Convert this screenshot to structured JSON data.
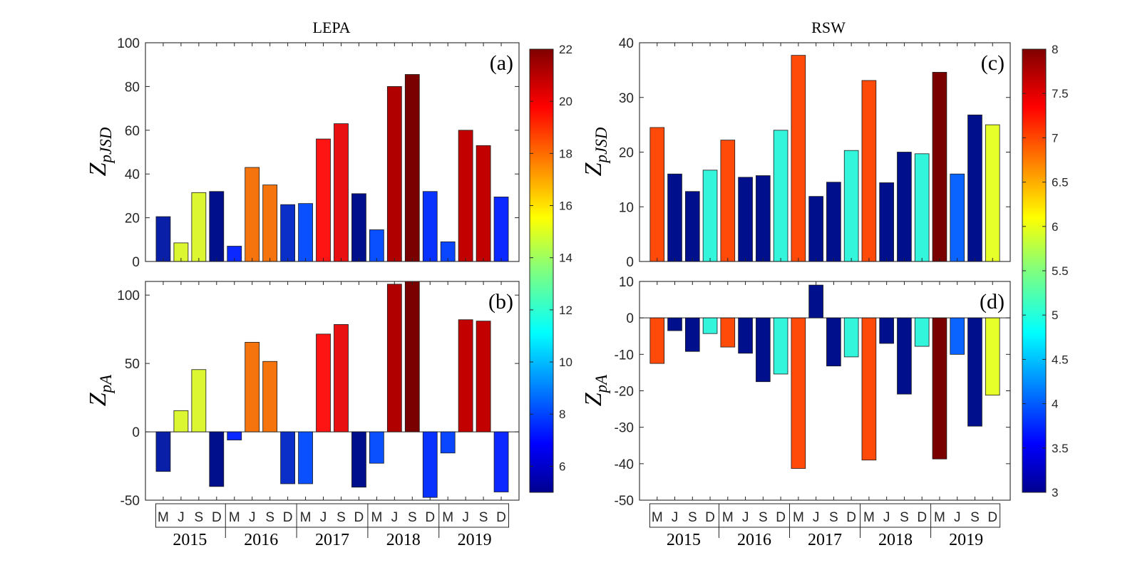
{
  "chart_data": [
    {
      "id": "a",
      "type": "bar",
      "column_title": "LEPA",
      "panel_label": "(a)",
      "ylabel": {
        "main": "Z",
        "sub": "pJSD"
      },
      "ylim": [
        0,
        100
      ],
      "yticks": [
        "0",
        "20",
        "40",
        "60",
        "80",
        "100"
      ],
      "categories": [
        "M",
        "J",
        "S",
        "D",
        "M",
        "J",
        "S",
        "D",
        "M",
        "J",
        "S",
        "D",
        "M",
        "J",
        "S",
        "D",
        "M",
        "J",
        "S",
        "D"
      ],
      "values": [
        20.5,
        8.5,
        31.5,
        32,
        7,
        43,
        35,
        26,
        26.5,
        56,
        63,
        31,
        14.5,
        80,
        85.5,
        32,
        9,
        60,
        53,
        29.5
      ],
      "colors": [
        "#0a1fa8",
        "#dcf731",
        "#dcf731",
        "#000f8c",
        "#0a28ff",
        "#f5740e",
        "#f5740e",
        "#0a2ec8",
        "#0a50ff",
        "#ff1414",
        "#e81010",
        "#000f8c",
        "#0a50ff",
        "#b00000",
        "#7a0000",
        "#0a32ff",
        "#0a46ff",
        "#c20000",
        "#c20000",
        "#0a28ff"
      ]
    },
    {
      "id": "b",
      "type": "bar",
      "panel_label": "(b)",
      "ylabel": {
        "main": "Z",
        "sub": "pA"
      },
      "ylim": [
        -50,
        110
      ],
      "yticks": [
        "-50",
        "0",
        "50",
        "100"
      ],
      "categories": [
        "M",
        "J",
        "S",
        "D",
        "M",
        "J",
        "S",
        "D",
        "M",
        "J",
        "S",
        "D",
        "M",
        "J",
        "S",
        "D",
        "M",
        "J",
        "S",
        "D"
      ],
      "values": [
        -29,
        15.5,
        45.5,
        -40,
        -6,
        65.5,
        51.5,
        -38,
        -38,
        71.5,
        78.5,
        -40.5,
        -23,
        108,
        110,
        -48,
        -15.5,
        82,
        81,
        -44
      ],
      "colors": [
        "#0a1fa8",
        "#dcf731",
        "#dcf731",
        "#000f8c",
        "#0a28ff",
        "#f5740e",
        "#f5740e",
        "#0a2ec8",
        "#0a50ff",
        "#ff1414",
        "#e81010",
        "#000f8c",
        "#0a50ff",
        "#b00000",
        "#7a0000",
        "#0a32ff",
        "#0a46ff",
        "#c20000",
        "#c20000",
        "#0a28ff"
      ]
    },
    {
      "id": "c",
      "type": "bar",
      "column_title": "RSW",
      "panel_label": "(c)",
      "ylabel": {
        "main": "Z",
        "sub": "pJSD"
      },
      "ylim": [
        0,
        40
      ],
      "yticks": [
        "0",
        "10",
        "20",
        "30",
        "40"
      ],
      "categories": [
        "M",
        "J",
        "S",
        "D",
        "M",
        "J",
        "S",
        "D",
        "M",
        "J",
        "S",
        "D",
        "M",
        "J",
        "S",
        "D",
        "M",
        "J",
        "S",
        "D"
      ],
      "values": [
        24.5,
        16,
        12.8,
        16.7,
        22.2,
        15.4,
        15.7,
        24,
        37.7,
        11.9,
        14.5,
        20.3,
        33.1,
        14.4,
        20,
        19.7,
        34.6,
        16,
        26.8,
        25
      ],
      "colors": [
        "#ff4a0a",
        "#000f8c",
        "#000f8c",
        "#32f5dc",
        "#ff4a0a",
        "#000f8c",
        "#000f8c",
        "#32f5dc",
        "#ff4a0a",
        "#000f8c",
        "#000f8c",
        "#32f5dc",
        "#ff4a0a",
        "#000f8c",
        "#000f8c",
        "#32f5dc",
        "#7a0000",
        "#0a64ff",
        "#000f8c",
        "#e6ff2a"
      ]
    },
    {
      "id": "d",
      "type": "bar",
      "panel_label": "(d)",
      "ylabel": {
        "main": "Z",
        "sub": "pA"
      },
      "ylim": [
        -50,
        10
      ],
      "yticks": [
        "-50",
        "-40",
        "-30",
        "-20",
        "-10",
        "0",
        "10"
      ],
      "categories": [
        "M",
        "J",
        "S",
        "D",
        "M",
        "J",
        "S",
        "D",
        "M",
        "J",
        "S",
        "D",
        "M",
        "J",
        "S",
        "D",
        "M",
        "J",
        "S",
        "D"
      ],
      "values": [
        -12.5,
        -3.5,
        -9.2,
        -4.3,
        -8,
        -9.7,
        -17.5,
        -15.4,
        -41.3,
        9,
        -13.2,
        -10.7,
        -39,
        -7,
        -20.9,
        -7.8,
        -38.7,
        -10,
        -29.7,
        -21.2
      ],
      "colors": [
        "#ff4a0a",
        "#000f8c",
        "#000f8c",
        "#32f5dc",
        "#ff4a0a",
        "#000f8c",
        "#000f8c",
        "#32f5dc",
        "#ff4a0a",
        "#000f8c",
        "#000f8c",
        "#32f5dc",
        "#ff4a0a",
        "#000f8c",
        "#000f8c",
        "#32f5dc",
        "#7a0000",
        "#0a64ff",
        "#000f8c",
        "#e6ff2a"
      ]
    }
  ],
  "colorbars": [
    {
      "id": "left",
      "min": 5,
      "max": 22,
      "ticks": [
        "6",
        "8",
        "10",
        "12",
        "14",
        "16",
        "18",
        "20",
        "22"
      ],
      "tick_values": [
        6,
        8,
        10,
        12,
        14,
        16,
        18,
        20,
        22
      ]
    },
    {
      "id": "right",
      "min": 3,
      "max": 8,
      "ticks": [
        "3",
        "3.5",
        "4",
        "4.5",
        "5",
        "5.5",
        "6",
        "6.5",
        "7",
        "7.5",
        "8"
      ],
      "tick_values": [
        3,
        3.5,
        4,
        4.5,
        5,
        5.5,
        6,
        6.5,
        7,
        7.5,
        8
      ]
    }
  ],
  "months": [
    "M",
    "J",
    "S",
    "D"
  ],
  "years": [
    "2015",
    "2016",
    "2017",
    "2018",
    "2019"
  ],
  "colormap": "jet"
}
